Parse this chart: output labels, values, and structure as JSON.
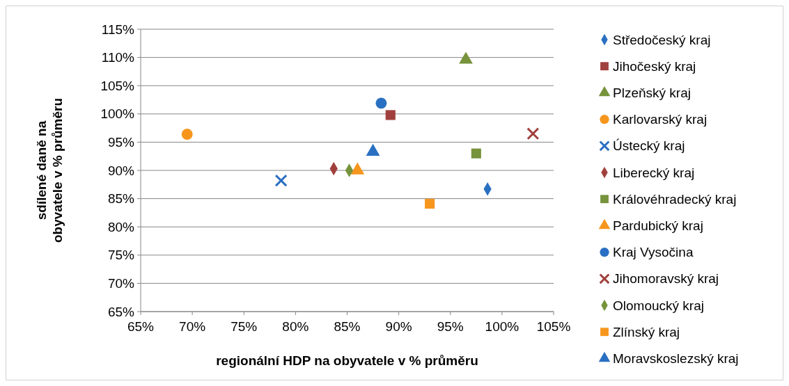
{
  "chart_data": {
    "type": "scatter",
    "xlabel": "regionální HDP na obyvatele v % průměru",
    "ylabel": "sdílené daně na obyvatele v % průměru",
    "xlim": [
      65,
      105
    ],
    "ylim": [
      65,
      115
    ],
    "xticks": [
      {
        "value": 65,
        "label": "65%"
      },
      {
        "value": 70,
        "label": "70%"
      },
      {
        "value": 75,
        "label": "75%"
      },
      {
        "value": 80,
        "label": "80%"
      },
      {
        "value": 85,
        "label": "85%"
      },
      {
        "value": 90,
        "label": "90%"
      },
      {
        "value": 95,
        "label": "95%"
      },
      {
        "value": 100,
        "label": "100%"
      },
      {
        "value": 105,
        "label": "105%"
      }
    ],
    "yticks": [
      {
        "value": 65,
        "label": "65%"
      },
      {
        "value": 70,
        "label": "70%"
      },
      {
        "value": 75,
        "label": "75%"
      },
      {
        "value": 80,
        "label": "80%"
      },
      {
        "value": 85,
        "label": "85%"
      },
      {
        "value": 90,
        "label": "90%"
      },
      {
        "value": 95,
        "label": "95%"
      },
      {
        "value": 100,
        "label": "100%"
      },
      {
        "value": 105,
        "label": "105%"
      },
      {
        "value": 110,
        "label": "110%"
      },
      {
        "value": 115,
        "label": "115%"
      }
    ],
    "grid": "y",
    "legend": "right",
    "series": [
      {
        "name": "Středočeský kraj",
        "color": "#2a70c2",
        "marker": "diamond",
        "x": [
          98.6
        ],
        "values": [
          86.7
        ]
      },
      {
        "name": "Jihočeský kraj",
        "color": "#a0403d",
        "marker": "square",
        "x": [
          89.2
        ],
        "values": [
          99.8
        ]
      },
      {
        "name": "Plzeňský kraj",
        "color": "#77933c",
        "marker": "triangle",
        "x": [
          96.5
        ],
        "values": [
          109.6
        ]
      },
      {
        "name": "Karlovarský kraj",
        "color": "#f7961d",
        "marker": "circle",
        "x": [
          69.5
        ],
        "values": [
          96.4
        ]
      },
      {
        "name": "Ústecký kraj",
        "color": "#2a70c2",
        "marker": "cross",
        "x": [
          78.6
        ],
        "values": [
          88.2
        ]
      },
      {
        "name": "Liberecký kraj",
        "color": "#a0403d",
        "marker": "diamond",
        "x": [
          83.7
        ],
        "values": [
          90.3
        ]
      },
      {
        "name": "Královéhradecký kraj",
        "color": "#77933c",
        "marker": "square",
        "x": [
          97.5
        ],
        "values": [
          93.0
        ]
      },
      {
        "name": "Pardubický kraj",
        "color": "#f7961d",
        "marker": "triangle",
        "x": [
          86.0
        ],
        "values": [
          90.0
        ]
      },
      {
        "name": "Kraj Vysočina",
        "color": "#2a70c2",
        "marker": "circle",
        "x": [
          88.3
        ],
        "values": [
          101.9
        ]
      },
      {
        "name": "Jihomoravský kraj",
        "color": "#a0403d",
        "marker": "cross",
        "x": [
          103.0
        ],
        "values": [
          96.5
        ]
      },
      {
        "name": "Olomoucký kraj",
        "color": "#77933c",
        "marker": "diamond",
        "x": [
          85.2
        ],
        "values": [
          90.0
        ]
      },
      {
        "name": "Zlínský kraj",
        "color": "#f7961d",
        "marker": "square",
        "x": [
          93.0
        ],
        "values": [
          84.1
        ]
      },
      {
        "name": "Moravskoslezský kraj",
        "color": "#2a70c2",
        "marker": "triangle",
        "x": [
          87.5
        ],
        "values": [
          93.3
        ]
      }
    ]
  }
}
